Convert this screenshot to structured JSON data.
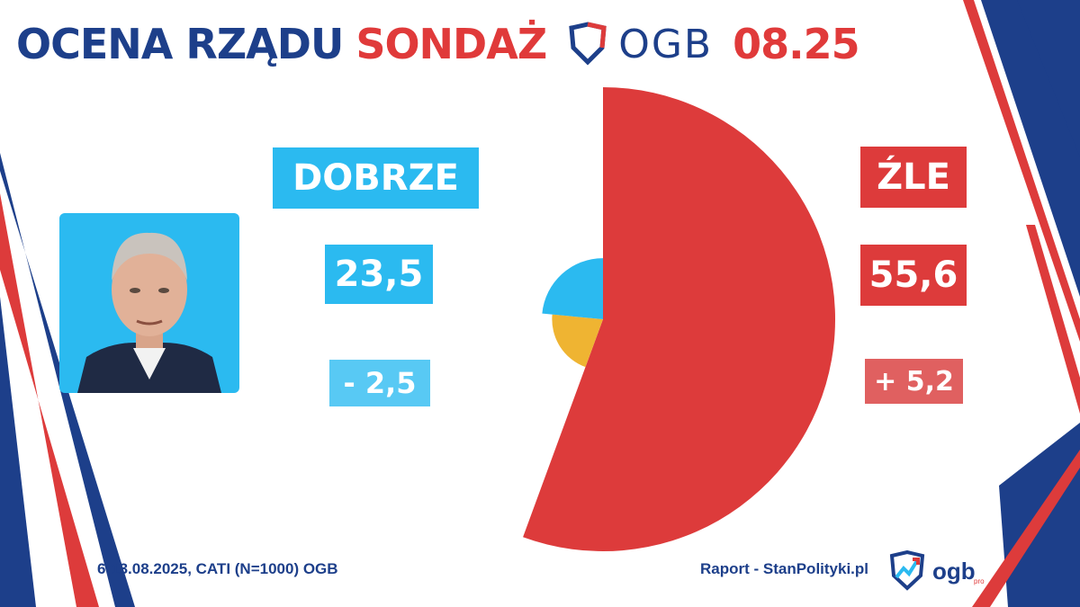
{
  "header": {
    "title_part1": "OCENA RZĄDU",
    "title_part2": "SONDAŻ",
    "logo_text": "OGB",
    "date": "08.25"
  },
  "colors": {
    "navy": "#1d3f8a",
    "red": "#dd3b3b",
    "blue": "#2bbaf0",
    "yellow": "#efb432"
  },
  "photo": {
    "icon": "portrait-photo"
  },
  "good": {
    "label": "DOBRZE",
    "value": "23,5",
    "change": "- 2,5"
  },
  "bad": {
    "label": "ŹLE",
    "value": "55,6",
    "change": "+ 5,2"
  },
  "chart_data": {
    "type": "pie",
    "title": "",
    "slices": [
      {
        "label": "ŹLE",
        "value": 55.6,
        "color": "#dd3b3b"
      },
      {
        "label": "",
        "value": 20.9,
        "color": "#efb432"
      },
      {
        "label": "DOBRZE",
        "value": 23.5,
        "color": "#2bbaf0"
      }
    ],
    "start": "top",
    "direction": "clockwise",
    "style": "rose (radius varies by value)"
  },
  "footer": {
    "method": "6-13.08.2025, CATI (N=1000) OGB",
    "source": "Raport - StanPolityki.pl",
    "brand": "ogb",
    "brand_sub": "pro"
  }
}
